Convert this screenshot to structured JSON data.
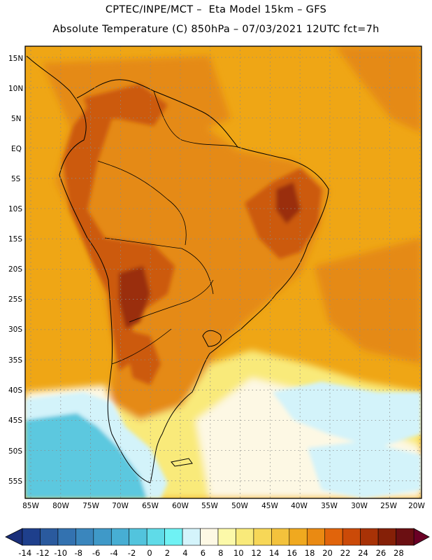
{
  "header": {
    "line1": "CPTEC/INPE/MCT –  Eta Model 15km – GFS",
    "line2": "Absolute Temperature (C) 850hPa – 07/03/2021 12UTC fct=7h"
  },
  "map": {
    "lat_labels": [
      "15N",
      "10N",
      "5N",
      "EQ",
      "5S",
      "10S",
      "15S",
      "20S",
      "25S",
      "30S",
      "35S",
      "40S",
      "45S",
      "50S",
      "55S"
    ],
    "lon_labels": [
      "85W",
      "80W",
      "75W",
      "70W",
      "65W",
      "60W",
      "55W",
      "50W",
      "45W",
      "40W",
      "35W",
      "30W",
      "25W",
      "20W"
    ]
  },
  "colorbar": {
    "levels": [
      "-14",
      "-12",
      "-10",
      "-8",
      "-6",
      "-4",
      "-2",
      "0",
      "2",
      "4",
      "6",
      "8",
      "10",
      "12",
      "14",
      "16",
      "18",
      "20",
      "22",
      "24",
      "26",
      "28"
    ],
    "colors": [
      "#1e3f8c",
      "#2a5a9e",
      "#3372b0",
      "#3a86bd",
      "#3f99c8",
      "#47aed3",
      "#52c4dd",
      "#5fdbe8",
      "#6ff2f4",
      "#d4f4fb",
      "#fdf8e4",
      "#fcf9a9",
      "#f9ea7a",
      "#f7d757",
      "#f3c23c",
      "#f0a91f",
      "#ea8a12",
      "#e1640b",
      "#cb4a08",
      "#a83206",
      "#852007",
      "#6b0f12"
    ],
    "under_color": "#1a2f7a",
    "over_color": "#6a0025"
  },
  "colors": {
    "ocean_base": "#efa615",
    "land_warm": "#e58a12",
    "land_hot": "#cc5a0c",
    "land_hottest": "#9a2d08",
    "cold_water": "#5cc8df",
    "cool_water": "#d3f3fa"
  }
}
